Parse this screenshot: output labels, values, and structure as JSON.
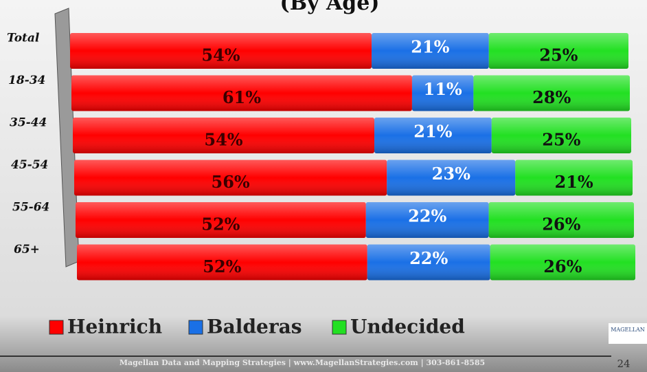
{
  "chart_data": {
    "type": "stacked-bar-horizontal",
    "title": "(By Age)",
    "categories": [
      "Total",
      "18-34",
      "35-44",
      "45-54",
      "55-64",
      "65+"
    ],
    "series": [
      {
        "name": "Heinrich",
        "color": "#ff0000",
        "values": [
          54,
          61,
          54,
          56,
          52,
          52
        ],
        "value_labels": [
          "54%",
          "61%",
          "54%",
          "56%",
          "52%",
          "52%"
        ]
      },
      {
        "name": "Balderas",
        "color": "#1a70e6",
        "values": [
          21,
          11,
          21,
          23,
          22,
          22
        ],
        "value_labels": [
          "21%",
          "11%",
          "21%",
          "23%",
          "22%",
          "22%"
        ]
      },
      {
        "name": "Undecided",
        "color": "#22e022",
        "values": [
          25,
          28,
          25,
          21,
          26,
          26
        ],
        "value_labels": [
          "25%",
          "28%",
          "25%",
          "21%",
          "26%",
          "26%"
        ]
      }
    ],
    "xlim": [
      0,
      100
    ]
  },
  "footer": {
    "text": "Magellan Data and Mapping Strategies | www.MagellanStrategies.com | 303-861-8585",
    "page": "24",
    "logo": "MAGELLAN"
  }
}
